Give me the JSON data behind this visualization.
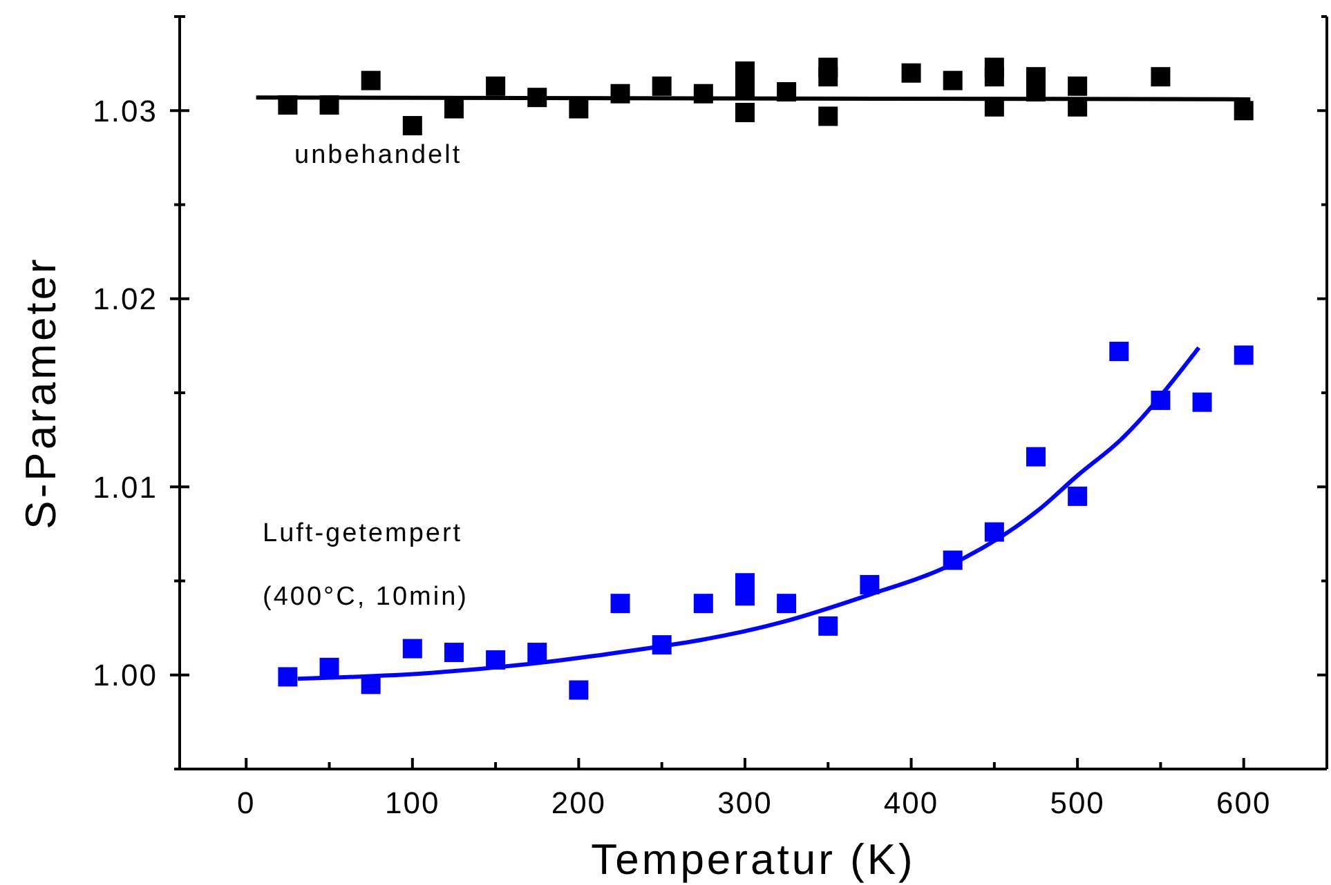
{
  "chart_data": {
    "type": "scatter",
    "xlabel": "Temperatur (K)",
    "ylabel": "S-Parameter",
    "xlim": [
      -40,
      650
    ],
    "ylim": [
      0.995,
      1.035
    ],
    "xticks": [
      0,
      {
        "value": 50,
        "label": null
      },
      100,
      {
        "value": 150,
        "label": null
      },
      200,
      {
        "value": 250,
        "label": null
      },
      300,
      {
        "value": 350,
        "label": null
      },
      400,
      {
        "value": 450,
        "label": null
      },
      500,
      {
        "value": 550,
        "label": null
      },
      600
    ],
    "yticks": [
      {
        "value": 0.995,
        "label": null
      },
      {
        "value": 1.0,
        "label": "1.00"
      },
      {
        "value": 1.005,
        "label": null
      },
      {
        "value": 1.01,
        "label": "1.01"
      },
      {
        "value": 1.015,
        "label": null
      },
      {
        "value": 1.02,
        "label": "1.02"
      },
      {
        "value": 1.025,
        "label": null
      },
      {
        "value": 1.03,
        "label": "1.03"
      },
      {
        "value": 1.035,
        "label": null
      }
    ],
    "grid": false,
    "marker": "square",
    "series": [
      {
        "name": "unbehandelt",
        "color": "#000000",
        "x": [
          25,
          50,
          75,
          100,
          125,
          150,
          175,
          200,
          225,
          250,
          275,
          300,
          300,
          300,
          325,
          350,
          350,
          350,
          400,
          425,
          450,
          450,
          450,
          475,
          475,
          500,
          500,
          550,
          600
        ],
        "values": [
          1.0303,
          1.0303,
          1.0316,
          1.0292,
          1.0301,
          1.0313,
          1.0307,
          1.0301,
          1.0309,
          1.0313,
          1.0309,
          1.0321,
          1.0312,
          1.0299,
          1.031,
          1.0323,
          1.0318,
          1.0297,
          1.032,
          1.0316,
          1.0323,
          1.0318,
          1.0302,
          1.0318,
          1.031,
          1.0313,
          1.0302,
          1.0318,
          1.03
        ]
      },
      {
        "type": "line",
        "color": "#000000",
        "marker": "none",
        "x": [
          6,
          604
        ],
        "values": [
          1.0307,
          1.0306
        ]
      },
      {
        "name": "Luft-getempert\n(400°C, 10min)",
        "color": "#0000ff",
        "x": [
          25,
          50,
          75,
          100,
          125,
          150,
          175,
          200,
          225,
          250,
          275,
          300,
          300,
          325,
          350,
          375,
          425,
          450,
          475,
          500,
          525,
          550,
          575,
          600
        ],
        "values": [
          0.9999,
          1.0004,
          0.9995,
          1.0014,
          1.0012,
          1.0008,
          1.0012,
          0.9992,
          1.0038,
          1.0016,
          1.0038,
          1.0049,
          1.0042,
          1.0038,
          1.0026,
          1.0048,
          1.0061,
          1.0076,
          1.0116,
          1.0095,
          1.0172,
          1.0146,
          1.0145,
          1.017
        ]
      },
      {
        "type": "line",
        "color": "#0000ff",
        "marker": "none",
        "x": [
          31,
          110,
          208,
          322,
          376,
          420,
          477,
          500,
          526,
          573
        ],
        "values": [
          0.9998,
          1.0001,
          1.001,
          1.0028,
          1.0043,
          1.0057,
          1.0088,
          1.0106,
          1.0125,
          1.0174
        ]
      }
    ]
  }
}
